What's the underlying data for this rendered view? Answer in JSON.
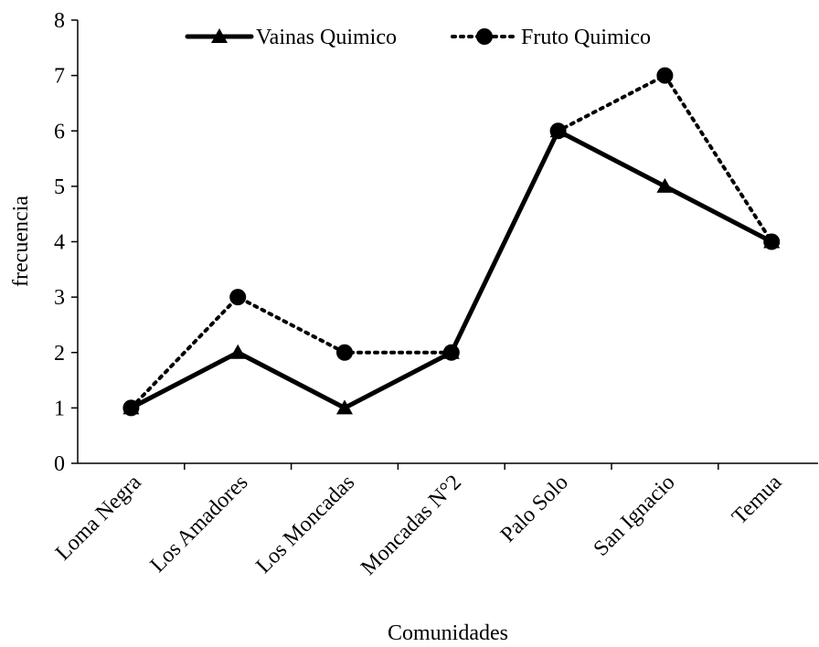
{
  "chart_data": {
    "type": "line",
    "x_label": "Comunidades",
    "y_label": "frecuencia",
    "categories": [
      "Loma Negra",
      "Los Amadores",
      "Los Moncadas",
      "Moncadas N°2",
      "Palo Solo",
      "San Ignacio",
      "Temua"
    ],
    "series": [
      {
        "name": "Vainas Quimico",
        "color": "#000000",
        "marker": "triangle",
        "line_style": "solid",
        "values": [
          1,
          2,
          1,
          2,
          6,
          5,
          4
        ]
      },
      {
        "name": "Fruto Quimico",
        "color": "#000000",
        "marker": "circle",
        "line_style": "dotted",
        "values": [
          1,
          3,
          2,
          2,
          6,
          7,
          4
        ]
      }
    ],
    "ylim": [
      0,
      8
    ],
    "yticks": [
      0,
      1,
      2,
      3,
      4,
      5,
      6,
      7,
      8
    ],
    "legend": "top"
  }
}
